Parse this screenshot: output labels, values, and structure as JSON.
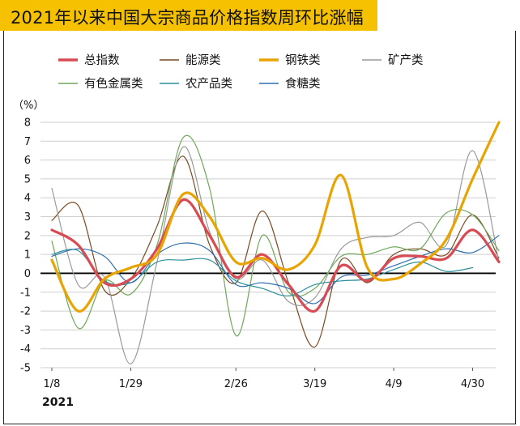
{
  "title": "2021年以来中国大宗商品价格指数周环比涨幅",
  "colors": {
    "title_bg": "#f5c100"
  },
  "chart_data": {
    "type": "line",
    "ylabel": "（%）",
    "ylim": [
      -5,
      8
    ],
    "yticks": [
      -5,
      -4,
      -3,
      -2,
      -1,
      0,
      1,
      2,
      3,
      4,
      5,
      6,
      7,
      8
    ],
    "grid": true,
    "legend_placement": "top",
    "x": [
      "1/8",
      "1/15",
      "1/22",
      "1/29",
      "2/5",
      "2/12",
      "2/19",
      "2/26",
      "3/5",
      "3/12",
      "3/19",
      "3/26",
      "4/2",
      "4/9",
      "4/16",
      "4/23",
      "4/30",
      "5/7"
    ],
    "xtick_labels": [
      "1/8",
      "1/29",
      "2/26",
      "3/19",
      "4/9",
      "4/30"
    ],
    "year_label": "2021",
    "series": [
      {
        "name": "总指数",
        "color": "#d94b52",
        "width": 3.2,
        "values": [
          2.3,
          1.5,
          -0.5,
          -0.3,
          1.3,
          3.9,
          2.0,
          -0.2,
          1.0,
          -0.6,
          -2.0,
          0.4,
          -0.4,
          0.8,
          0.9,
          0.8,
          2.3,
          0.6
        ]
      },
      {
        "name": "能源类",
        "color": "#7a4a22",
        "width": 1.2,
        "values": [
          2.8,
          3.6,
          -0.9,
          -0.3,
          2.5,
          6.2,
          1.5,
          -0.5,
          3.3,
          -0.5,
          -3.9,
          0.7,
          -0.5,
          1.0,
          1.3,
          1.0,
          3.1,
          0.8
        ]
      },
      {
        "name": "钢铁类",
        "color": "#e8a400",
        "width": 3.2,
        "values": [
          0.7,
          -2.0,
          -0.3,
          0.3,
          1.0,
          4.2,
          3.0,
          0.6,
          0.8,
          0.2,
          1.5,
          5.2,
          0.3,
          -0.3,
          0.5,
          1.8,
          5.0,
          8.0
        ]
      },
      {
        "name": "矿产类",
        "color": "#9a9a9a",
        "width": 1.2,
        "values": [
          4.5,
          -0.6,
          -0.2,
          -4.8,
          0.6,
          6.7,
          2.2,
          -0.3,
          0.7,
          -1.5,
          -1.3,
          1.3,
          1.9,
          2.0,
          2.7,
          1.5,
          6.5,
          0.6
        ]
      },
      {
        "name": "有色金属类",
        "color": "#6fa85a",
        "width": 1.2,
        "values": [
          1.7,
          -2.9,
          -0.4,
          -1.1,
          1.5,
          7.2,
          4.5,
          -3.3,
          2.0,
          -1.0,
          -0.8,
          0.9,
          1.0,
          1.4,
          1.3,
          3.2,
          3.1,
          1.2
        ]
      },
      {
        "name": "农产品类",
        "color": "#2a8f9a",
        "width": 1.2,
        "values": [
          1.0,
          1.2,
          -0.4,
          -0.5,
          0.6,
          0.7,
          0.7,
          -0.4,
          -0.8,
          -1.2,
          -0.6,
          -0.4,
          -0.3,
          0.2,
          0.6,
          0.1,
          0.3,
          null
        ]
      },
      {
        "name": "食糖类",
        "color": "#2f6fb0",
        "width": 1.2,
        "values": [
          0.9,
          1.3,
          0.9,
          -0.5,
          1.0,
          1.6,
          1.2,
          -0.6,
          -0.5,
          -0.8,
          -1.6,
          -0.2,
          -0.1,
          0.4,
          0.9,
          1.3,
          1.1,
          2.0
        ]
      }
    ]
  }
}
